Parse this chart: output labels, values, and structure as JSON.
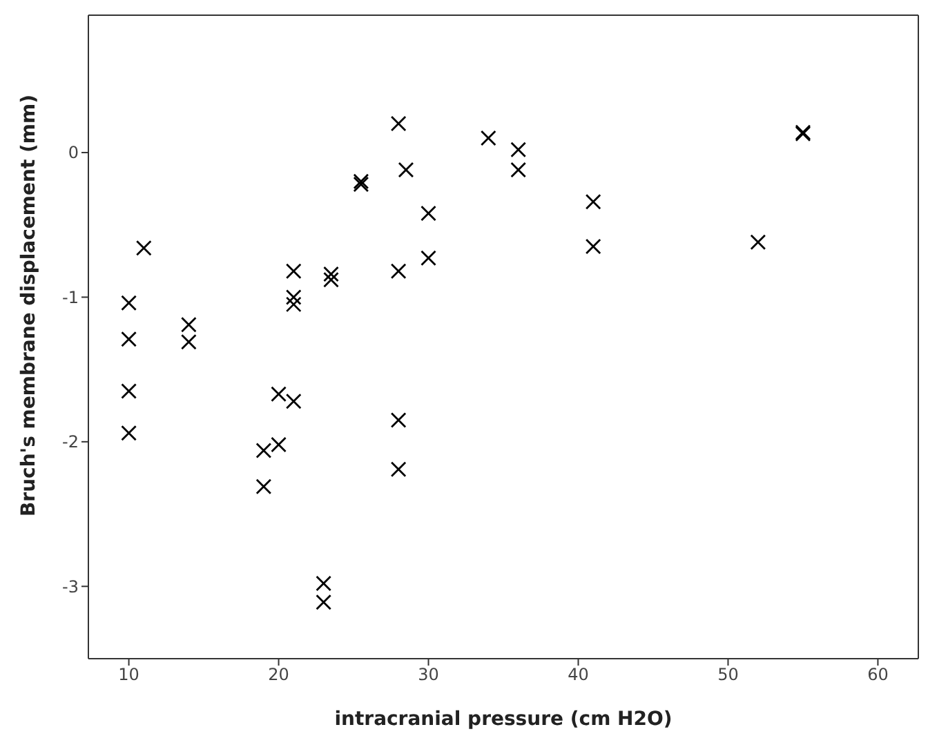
{
  "chart_data": {
    "type": "scatter",
    "xlabel": "intracranial pressure (cm H2O)",
    "ylabel": "Bruch's membrane displacement (mm)",
    "xlim": [
      7.3,
      62.7
    ],
    "xticks": [
      10,
      20,
      30,
      40,
      50,
      60
    ],
    "ylim": [
      -3.5,
      0.95
    ],
    "yticks": [
      -3,
      -2,
      -1,
      0
    ],
    "grid": false,
    "legend": false,
    "marker": "cross",
    "series": [
      {
        "color": "#000000",
        "x": [
          28,
          34,
          28.5,
          25.5,
          25.5,
          30,
          11,
          21,
          23.5,
          23.5,
          28,
          30,
          10,
          21,
          21,
          14,
          14,
          10,
          10,
          10,
          20,
          21,
          19,
          20,
          19,
          28,
          28,
          23,
          23,
          36,
          36,
          41,
          41,
          52,
          55,
          55
        ],
        "values": [
          0.2,
          0.1,
          -0.12,
          -0.2,
          -0.22,
          -0.42,
          -0.66,
          -0.82,
          -0.84,
          -0.88,
          -0.82,
          -0.73,
          -1.04,
          -1.0,
          -1.05,
          -1.19,
          -1.31,
          -1.29,
          -1.65,
          -1.94,
          -1.67,
          -1.72,
          -2.06,
          -2.02,
          -2.31,
          -1.85,
          -2.19,
          -2.98,
          -3.11,
          0.02,
          -0.12,
          -0.34,
          -0.65,
          -0.62,
          0.13,
          0.14
        ]
      }
    ]
  }
}
